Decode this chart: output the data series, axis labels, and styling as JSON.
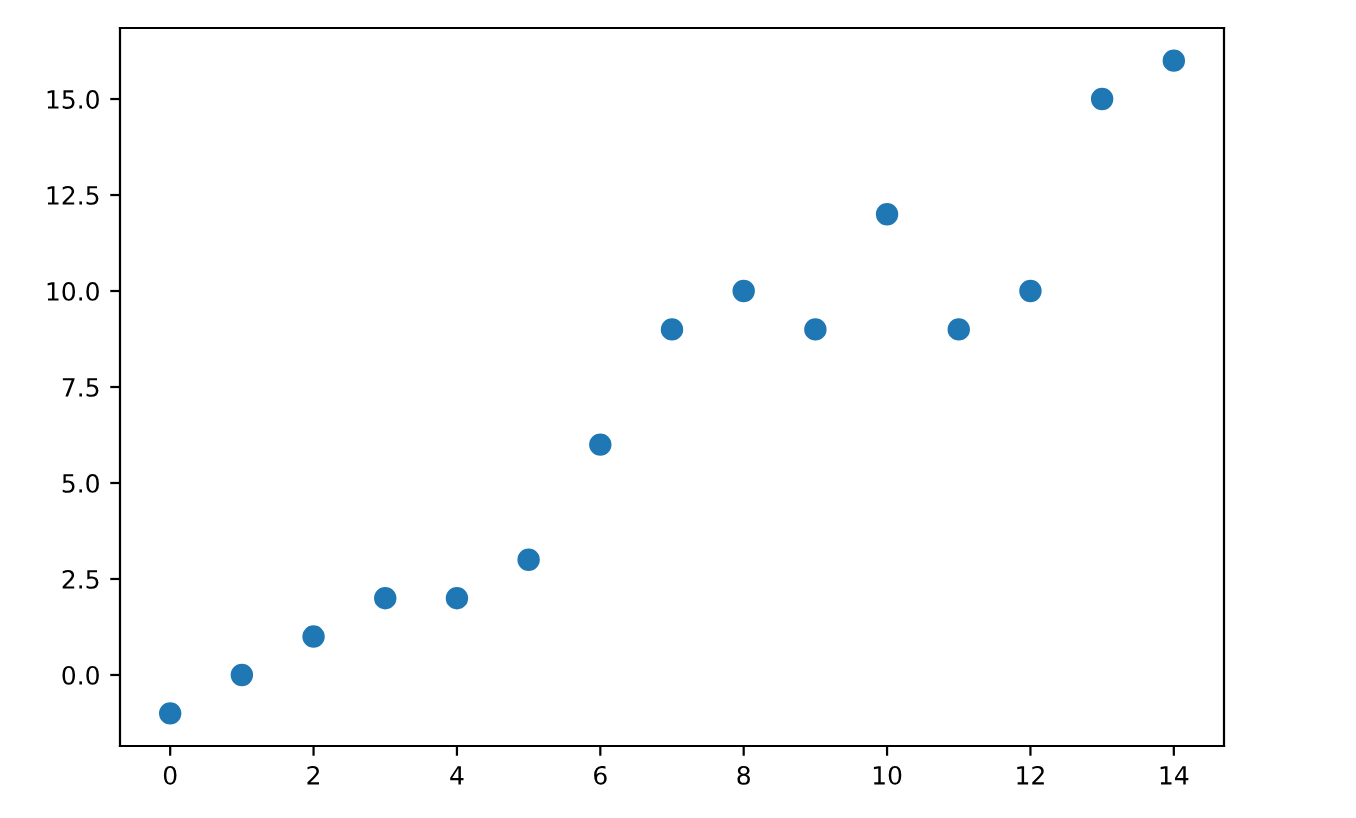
{
  "chart_data": {
    "type": "scatter",
    "x": [
      0,
      1,
      2,
      3,
      4,
      5,
      6,
      7,
      8,
      9,
      10,
      11,
      12,
      13,
      14
    ],
    "series": [
      {
        "color": "#1f77b4",
        "values": [
          -1,
          0,
          1,
          2,
          2,
          3,
          6,
          9,
          10,
          9,
          12,
          9,
          10,
          15,
          16
        ]
      }
    ],
    "xlim": [
      -0.7,
      14.7
    ],
    "xticks": [
      0,
      2,
      4,
      6,
      8,
      10,
      12,
      14
    ],
    "ylim": [
      -1.85,
      16.85
    ],
    "yticks": [
      {
        "value": 0,
        "label": "0.0"
      },
      {
        "value": 2.5,
        "label": "2.5"
      },
      {
        "value": 5,
        "label": "5.0"
      },
      {
        "value": 7.5,
        "label": "7.5"
      },
      {
        "value": 10,
        "label": "10.0"
      },
      {
        "value": 12.5,
        "label": "12.5"
      },
      {
        "value": 15,
        "label": "15.0"
      }
    ],
    "marker": "circle",
    "grid": false,
    "legend": false
  }
}
